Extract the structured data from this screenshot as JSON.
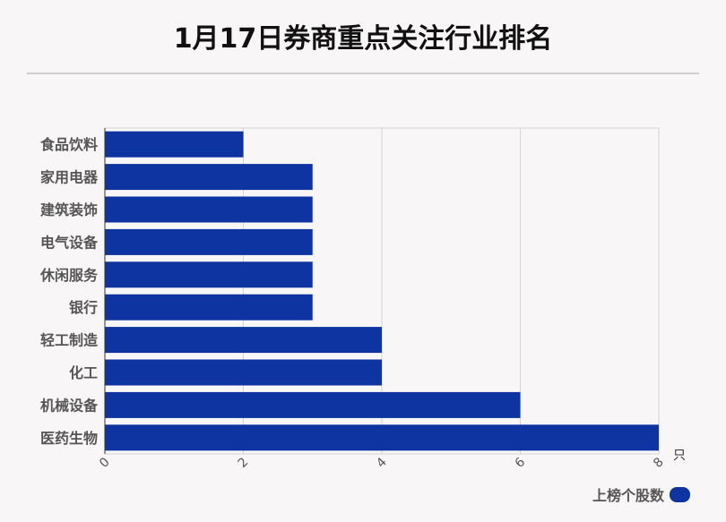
{
  "title": "1月17日券商重点关注行业排名",
  "colors": {
    "bar": "#0d34a0",
    "grid": "#d4d4d4",
    "background": "#f9f6f7"
  },
  "chart_data": {
    "type": "bar",
    "orientation": "horizontal",
    "categories": [
      "食品饮料",
      "家用电器",
      "建筑装饰",
      "电气设备",
      "休闲服务",
      "银行",
      "轻工制造",
      "化工",
      "机械设备",
      "医药生物"
    ],
    "series": [
      {
        "name": "上榜个股数",
        "values": [
          2,
          3,
          3,
          3,
          3,
          3,
          4,
          4,
          6,
          8
        ]
      }
    ],
    "xlim": [
      0,
      8
    ],
    "xticks": [
      "0",
      "2",
      "4",
      "6",
      "8"
    ],
    "xunit": "只",
    "grid": true,
    "legend_position": "bottom-right"
  }
}
